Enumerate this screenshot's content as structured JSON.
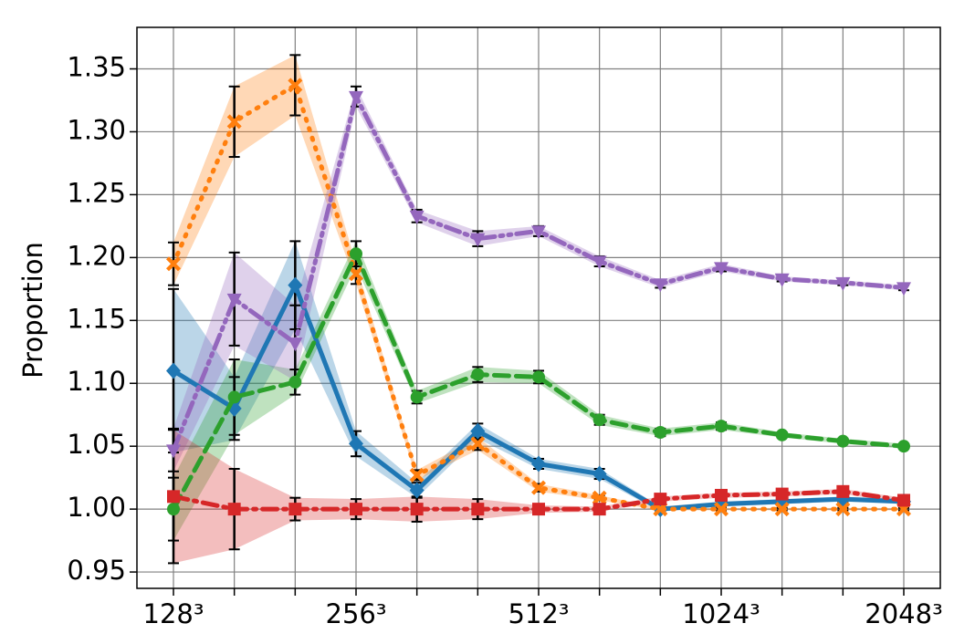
{
  "chart_data": {
    "type": "line",
    "ylabel": "Proportion",
    "categories": [
      "128³",
      null,
      null,
      "256³",
      null,
      null,
      "512³",
      null,
      null,
      "1024³",
      null,
      null,
      "2048³"
    ],
    "ylim": [
      0.937,
      1.383
    ],
    "yticks": [
      0.95,
      {
        "value": 1.0,
        "label": "1.00"
      },
      1.05,
      {
        "value": 1.1,
        "label": "1.10"
      },
      1.15,
      {
        "value": 1.2,
        "label": "1.20"
      },
      1.25,
      {
        "value": 1.3,
        "label": "1.30"
      },
      1.35
    ],
    "grid": true,
    "series": [
      {
        "color": "#1f77b4",
        "marker": "D",
        "linestyle": "solid",
        "values": [
          1.11,
          1.08,
          1.178,
          1.052,
          1.015,
          1.062,
          1.036,
          1.028,
          1.0,
          1.004,
          1.006,
          1.008,
          1.006
        ],
        "errors": [
          0.065,
          0.025,
          0.035,
          0.01,
          0.006,
          0.006,
          0.004,
          0.004,
          0.002,
          0.002,
          0.002,
          0.002,
          0.002
        ]
      },
      {
        "color": "#ff7f0e",
        "marker": "X",
        "linestyle": "dotted",
        "values": [
          1.195,
          1.308,
          1.337,
          1.187,
          1.027,
          1.052,
          1.017,
          1.009,
          1.0,
          1.0,
          1.0,
          1.0,
          1.0
        ],
        "errors": [
          0.017,
          0.028,
          0.024,
          0.008,
          0.004,
          0.005,
          0.003,
          0.002,
          0.001,
          0.001,
          0.001,
          0.001,
          0.001
        ]
      },
      {
        "color": "#2ca02c",
        "marker": "o",
        "linestyle": "dashed",
        "values": [
          1.0,
          1.089,
          1.101,
          1.203,
          1.089,
          1.107,
          1.105,
          1.071,
          1.061,
          1.066,
          1.059,
          1.054,
          1.05
        ],
        "errors": [
          0.025,
          0.03,
          0.01,
          0.01,
          0.005,
          0.006,
          0.005,
          0.004,
          0.003,
          0.003,
          0.002,
          0.002,
          0.002
        ]
      },
      {
        "color": "#9467bd",
        "marker": "v",
        "linestyle": "dashdotdot",
        "values": [
          1.047,
          1.167,
          1.132,
          1.328,
          1.233,
          1.215,
          1.221,
          1.197,
          1.179,
          1.192,
          1.183,
          1.18,
          1.176
        ],
        "errors": [
          0.017,
          0.037,
          0.03,
          0.008,
          0.005,
          0.006,
          0.004,
          0.004,
          0.003,
          0.003,
          0.002,
          0.002,
          0.002
        ]
      },
      {
        "color": "#d62728",
        "marker": "s",
        "linestyle": "dashdot",
        "values": [
          1.01,
          1.0,
          1.0,
          1.0,
          1.0,
          1.0,
          1.0,
          1.0,
          1.008,
          1.011,
          1.012,
          1.014,
          1.007
        ],
        "errors": [
          0.053,
          0.032,
          0.009,
          0.008,
          0.01,
          0.008,
          0.003,
          0.002,
          0.002,
          0.002,
          0.002,
          0.002,
          0.002
        ]
      }
    ]
  }
}
